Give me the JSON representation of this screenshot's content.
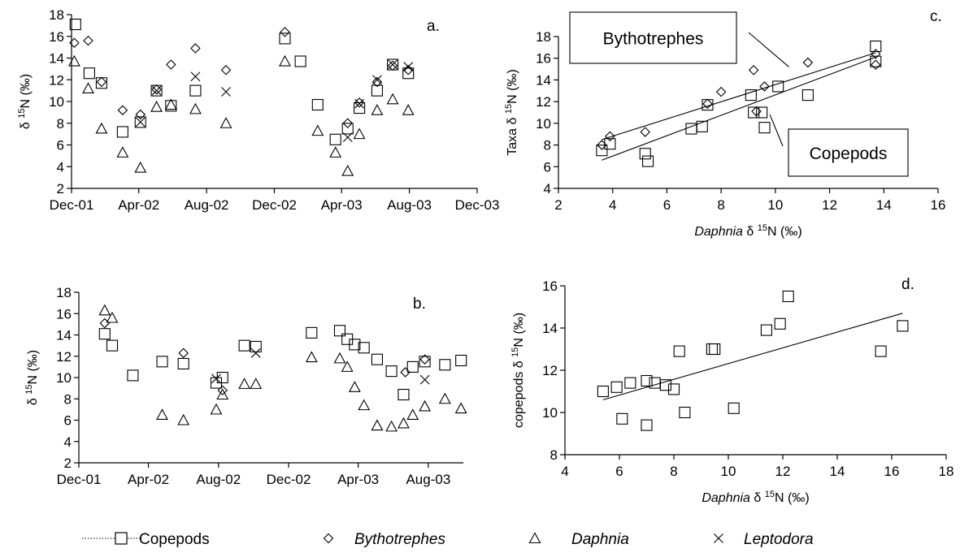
{
  "chart_data": [
    {
      "id": "a",
      "type": "scatter",
      "panel_label": "a.",
      "ylabel": "δ 15N (‰)",
      "xlabel": "",
      "ylim": [
        2,
        18
      ],
      "yticks": [
        2,
        4,
        6,
        8,
        10,
        12,
        14,
        16,
        18
      ],
      "xlim": [
        "2001-12-01",
        "2003-12-01"
      ],
      "xticks": [
        {
          "date": "2001-12-01",
          "label": "Dec-01"
        },
        {
          "date": "2002-04-01",
          "label": "Apr-02"
        },
        {
          "date": "2002-08-01",
          "label": "Aug-02"
        },
        {
          "date": "2002-12-01",
          "label": "Dec-02"
        },
        {
          "date": "2003-04-01",
          "label": "Apr-03"
        },
        {
          "date": "2003-08-01",
          "label": "Aug-03"
        },
        {
          "date": "2003-12-01",
          "label": "Dec-03"
        }
      ],
      "series": [
        {
          "name": "Copepods",
          "marker": "square",
          "points": [
            {
              "x": "2001-12-08",
              "y": 17.1
            },
            {
              "x": "2002-01-02",
              "y": 12.6
            },
            {
              "x": "2002-01-24",
              "y": 11.7
            },
            {
              "x": "2002-03-03",
              "y": 7.2
            },
            {
              "x": "2002-04-04",
              "y": 8.1
            },
            {
              "x": "2002-05-03",
              "y": 11.0
            },
            {
              "x": "2002-05-29",
              "y": 9.6
            },
            {
              "x": "2002-07-12",
              "y": 11.0
            },
            {
              "x": "2002-12-20",
              "y": 15.8
            },
            {
              "x": "2003-01-17",
              "y": 13.7
            },
            {
              "x": "2003-02-17",
              "y": 9.7
            },
            {
              "x": "2003-03-21",
              "y": 6.5
            },
            {
              "x": "2003-04-12",
              "y": 7.5
            },
            {
              "x": "2003-05-03",
              "y": 9.4
            },
            {
              "x": "2003-06-04",
              "y": 11.0
            },
            {
              "x": "2003-07-02",
              "y": 13.4
            },
            {
              "x": "2003-07-30",
              "y": 12.6
            }
          ]
        },
        {
          "name": "Bythotrephes",
          "marker": "diamond",
          "points": [
            {
              "x": "2001-12-06",
              "y": 15.4
            },
            {
              "x": "2001-12-31",
              "y": 15.6
            },
            {
              "x": "2002-01-24",
              "y": 11.8
            },
            {
              "x": "2002-03-03",
              "y": 9.2
            },
            {
              "x": "2002-04-04",
              "y": 8.8
            },
            {
              "x": "2002-05-03",
              "y": 11.1
            },
            {
              "x": "2002-05-29",
              "y": 13.4
            },
            {
              "x": "2002-07-12",
              "y": 14.9
            },
            {
              "x": "2002-09-05",
              "y": 12.9
            },
            {
              "x": "2002-12-20",
              "y": 16.4
            },
            {
              "x": "2003-04-12",
              "y": 8.0
            },
            {
              "x": "2003-05-03",
              "y": 9.9
            },
            {
              "x": "2003-06-04",
              "y": 11.8
            },
            {
              "x": "2003-07-02",
              "y": 13.3
            },
            {
              "x": "2003-07-30",
              "y": 12.9
            }
          ]
        },
        {
          "name": "Daphnia",
          "marker": "triangle",
          "points": [
            {
              "x": "2001-12-06",
              "y": 13.7
            },
            {
              "x": "2001-12-31",
              "y": 11.2
            },
            {
              "x": "2002-01-24",
              "y": 7.5
            },
            {
              "x": "2002-03-03",
              "y": 5.3
            },
            {
              "x": "2002-04-04",
              "y": 3.9
            },
            {
              "x": "2002-05-03",
              "y": 9.5
            },
            {
              "x": "2002-05-29",
              "y": 9.7
            },
            {
              "x": "2002-07-12",
              "y": 9.3
            },
            {
              "x": "2002-09-05",
              "y": 8.0
            },
            {
              "x": "2002-12-20",
              "y": 13.7
            },
            {
              "x": "2003-02-17",
              "y": 7.3
            },
            {
              "x": "2003-03-21",
              "y": 5.3
            },
            {
              "x": "2003-04-12",
              "y": 3.6
            },
            {
              "x": "2003-05-03",
              "y": 7.0
            },
            {
              "x": "2003-06-04",
              "y": 9.2
            },
            {
              "x": "2003-07-02",
              "y": 10.2
            },
            {
              "x": "2003-07-30",
              "y": 9.2
            }
          ]
        },
        {
          "name": "Leptodora",
          "marker": "cross",
          "points": [
            {
              "x": "2002-04-04",
              "y": 8.1
            },
            {
              "x": "2002-05-03",
              "y": 11.0
            },
            {
              "x": "2002-07-12",
              "y": 12.3
            },
            {
              "x": "2002-09-05",
              "y": 10.9
            },
            {
              "x": "2003-04-12",
              "y": 6.7
            },
            {
              "x": "2003-05-03",
              "y": 9.8
            },
            {
              "x": "2003-06-04",
              "y": 12.0
            },
            {
              "x": "2003-07-02",
              "y": 13.4
            },
            {
              "x": "2003-07-30",
              "y": 13.2
            }
          ]
        }
      ]
    },
    {
      "id": "b",
      "type": "scatter",
      "panel_label": "b.",
      "ylabel": "δ 15N (‰)",
      "xlabel": "",
      "ylim": [
        2,
        18
      ],
      "yticks": [
        2,
        4,
        6,
        8,
        10,
        12,
        14,
        16,
        18
      ],
      "xlim": [
        "2001-12-01",
        "2003-10-01"
      ],
      "xticks": [
        {
          "date": "2001-12-01",
          "label": "Dec-01"
        },
        {
          "date": "2002-04-01",
          "label": "Apr-02"
        },
        {
          "date": "2002-08-01",
          "label": "Aug-02"
        },
        {
          "date": "2002-12-01",
          "label": "Dec-02"
        },
        {
          "date": "2003-04-01",
          "label": "Apr-03"
        },
        {
          "date": "2003-08-01",
          "label": "Aug-03"
        }
      ],
      "series": [
        {
          "name": "Copepods",
          "marker": "square",
          "points": [
            {
              "x": "2002-01-15",
              "y": 14.1
            },
            {
              "x": "2002-01-28",
              "y": 13.0
            },
            {
              "x": "2002-03-05",
              "y": 10.2
            },
            {
              "x": "2002-04-25",
              "y": 11.5
            },
            {
              "x": "2002-06-01",
              "y": 11.3
            },
            {
              "x": "2002-07-28",
              "y": 9.5
            },
            {
              "x": "2002-08-08",
              "y": 10.0
            },
            {
              "x": "2002-09-15",
              "y": 13.0
            },
            {
              "x": "2002-10-05",
              "y": 12.9
            },
            {
              "x": "2003-01-10",
              "y": 14.2
            },
            {
              "x": "2003-02-28",
              "y": 14.4
            },
            {
              "x": "2003-03-13",
              "y": 13.6
            },
            {
              "x": "2003-03-26",
              "y": 13.1
            },
            {
              "x": "2003-04-11",
              "y": 12.8
            },
            {
              "x": "2003-05-04",
              "y": 11.7
            },
            {
              "x": "2003-05-29",
              "y": 10.6
            },
            {
              "x": "2003-06-19",
              "y": 8.4
            },
            {
              "x": "2003-07-05",
              "y": 11.0
            },
            {
              "x": "2003-07-26",
              "y": 11.5
            },
            {
              "x": "2003-08-30",
              "y": 11.2
            },
            {
              "x": "2003-09-27",
              "y": 11.6
            }
          ]
        },
        {
          "name": "Bythotrephes",
          "marker": "diamond",
          "points": [
            {
              "x": "2002-01-15",
              "y": 15.1
            },
            {
              "x": "2002-06-01",
              "y": 12.3
            },
            {
              "x": "2002-08-08",
              "y": 8.8
            },
            {
              "x": "2003-06-22",
              "y": 10.5
            },
            {
              "x": "2003-07-26",
              "y": 11.7
            }
          ]
        },
        {
          "name": "Daphnia",
          "marker": "triangle",
          "points": [
            {
              "x": "2002-01-15",
              "y": 16.3
            },
            {
              "x": "2002-01-28",
              "y": 15.6
            },
            {
              "x": "2002-04-25",
              "y": 6.5
            },
            {
              "x": "2002-06-01",
              "y": 6.0
            },
            {
              "x": "2002-07-28",
              "y": 7.0
            },
            {
              "x": "2002-08-08",
              "y": 8.4
            },
            {
              "x": "2002-09-15",
              "y": 9.4
            },
            {
              "x": "2002-10-05",
              "y": 9.4
            },
            {
              "x": "2003-01-10",
              "y": 11.9
            },
            {
              "x": "2003-02-28",
              "y": 11.8
            },
            {
              "x": "2003-03-13",
              "y": 11.0
            },
            {
              "x": "2003-03-26",
              "y": 9.1
            },
            {
              "x": "2003-04-11",
              "y": 7.4
            },
            {
              "x": "2003-05-04",
              "y": 5.5
            },
            {
              "x": "2003-05-29",
              "y": 5.4
            },
            {
              "x": "2003-06-19",
              "y": 5.7
            },
            {
              "x": "2003-07-05",
              "y": 6.5
            },
            {
              "x": "2003-07-26",
              "y": 7.3
            },
            {
              "x": "2003-08-30",
              "y": 8.0
            },
            {
              "x": "2003-09-27",
              "y": 7.1
            }
          ]
        },
        {
          "name": "Leptodora",
          "marker": "cross",
          "points": [
            {
              "x": "2002-07-28",
              "y": 9.9
            },
            {
              "x": "2002-10-05",
              "y": 12.3
            },
            {
              "x": "2003-07-26",
              "y": 9.8
            }
          ]
        }
      ]
    },
    {
      "id": "c",
      "type": "scatter",
      "panel_label": "c.",
      "ylabel": "Taxa δ 15N (‰)",
      "xlabel": "Daphnia δ 15N (‰)",
      "xlim": [
        2,
        16
      ],
      "xticks": [
        2,
        4,
        6,
        8,
        10,
        12,
        14,
        16
      ],
      "ylim": [
        4,
        18
      ],
      "yticks": [
        4,
        6,
        8,
        10,
        12,
        14,
        16,
        18
      ],
      "annotations": [
        "Bythotrephes",
        "Copepods"
      ],
      "series": [
        {
          "name": "Copepods",
          "marker": "square",
          "points": [
            {
              "x": 3.6,
              "y": 7.5
            },
            {
              "x": 3.9,
              "y": 8.1
            },
            {
              "x": 5.2,
              "y": 7.2
            },
            {
              "x": 5.3,
              "y": 6.5
            },
            {
              "x": 6.9,
              "y": 9.5
            },
            {
              "x": 7.3,
              "y": 9.7
            },
            {
              "x": 7.5,
              "y": 11.7
            },
            {
              "x": 9.1,
              "y": 12.6
            },
            {
              "x": 9.2,
              "y": 11.0
            },
            {
              "x": 9.5,
              "y": 11.0
            },
            {
              "x": 9.6,
              "y": 9.6
            },
            {
              "x": 10.1,
              "y": 13.4
            },
            {
              "x": 11.2,
              "y": 12.6
            },
            {
              "x": 13.7,
              "y": 15.7
            },
            {
              "x": 13.7,
              "y": 17.1
            }
          ]
        },
        {
          "name": "Bythotrephes",
          "marker": "diamond",
          "points": [
            {
              "x": 3.6,
              "y": 8.0
            },
            {
              "x": 3.9,
              "y": 8.8
            },
            {
              "x": 5.2,
              "y": 9.2
            },
            {
              "x": 7.5,
              "y": 11.8
            },
            {
              "x": 8.0,
              "y": 12.9
            },
            {
              "x": 9.2,
              "y": 14.9
            },
            {
              "x": 9.3,
              "y": 11.1
            },
            {
              "x": 9.6,
              "y": 13.4
            },
            {
              "x": 11.2,
              "y": 15.6
            },
            {
              "x": 13.7,
              "y": 15.4
            },
            {
              "x": 13.7,
              "y": 16.4
            }
          ]
        }
      ],
      "trendlines": [
        {
          "name": "Bythotrephes",
          "x": [
            3.6,
            13.7
          ],
          "y": [
            8.5,
            16.5
          ]
        },
        {
          "name": "Copepods",
          "x": [
            3.6,
            13.7
          ],
          "y": [
            6.6,
            16.1
          ]
        }
      ]
    },
    {
      "id": "d",
      "type": "scatter",
      "panel_label": "d.",
      "ylabel": "copepods δ 15N (‰)",
      "xlabel": "Daphnia δ 15N (‰)",
      "xlim": [
        4,
        18
      ],
      "xticks": [
        4,
        6,
        8,
        10,
        12,
        14,
        16,
        18
      ],
      "ylim": [
        8,
        16
      ],
      "yticks": [
        8,
        10,
        12,
        14,
        16
      ],
      "series": [
        {
          "name": "Copepods",
          "marker": "square",
          "points": [
            {
              "x": 5.4,
              "y": 11.0
            },
            {
              "x": 5.9,
              "y": 11.2
            },
            {
              "x": 6.1,
              "y": 9.7
            },
            {
              "x": 6.4,
              "y": 11.4
            },
            {
              "x": 7.0,
              "y": 9.4
            },
            {
              "x": 7.0,
              "y": 11.5
            },
            {
              "x": 7.3,
              "y": 11.4
            },
            {
              "x": 7.7,
              "y": 11.3
            },
            {
              "x": 8.0,
              "y": 11.1
            },
            {
              "x": 8.2,
              "y": 12.9
            },
            {
              "x": 8.4,
              "y": 10.0
            },
            {
              "x": 9.4,
              "y": 13.0
            },
            {
              "x": 9.5,
              "y": 13.0
            },
            {
              "x": 10.2,
              "y": 10.2
            },
            {
              "x": 11.4,
              "y": 13.9
            },
            {
              "x": 11.9,
              "y": 14.2
            },
            {
              "x": 12.2,
              "y": 15.5
            },
            {
              "x": 15.6,
              "y": 12.9
            },
            {
              "x": 16.4,
              "y": 14.1
            }
          ]
        }
      ],
      "trendlines": [
        {
          "name": "Copepods",
          "x": [
            5.4,
            16.4
          ],
          "y": [
            10.6,
            14.7
          ]
        }
      ]
    }
  ],
  "legend": {
    "position": "bottom",
    "items": [
      {
        "label": "Copepods",
        "marker": "square",
        "italic": false
      },
      {
        "label": "Bythotrephes",
        "marker": "diamond",
        "italic": true
      },
      {
        "label": "Daphnia",
        "marker": "triangle",
        "italic": true
      },
      {
        "label": "Leptodora",
        "marker": "cross",
        "italic": true
      }
    ]
  }
}
